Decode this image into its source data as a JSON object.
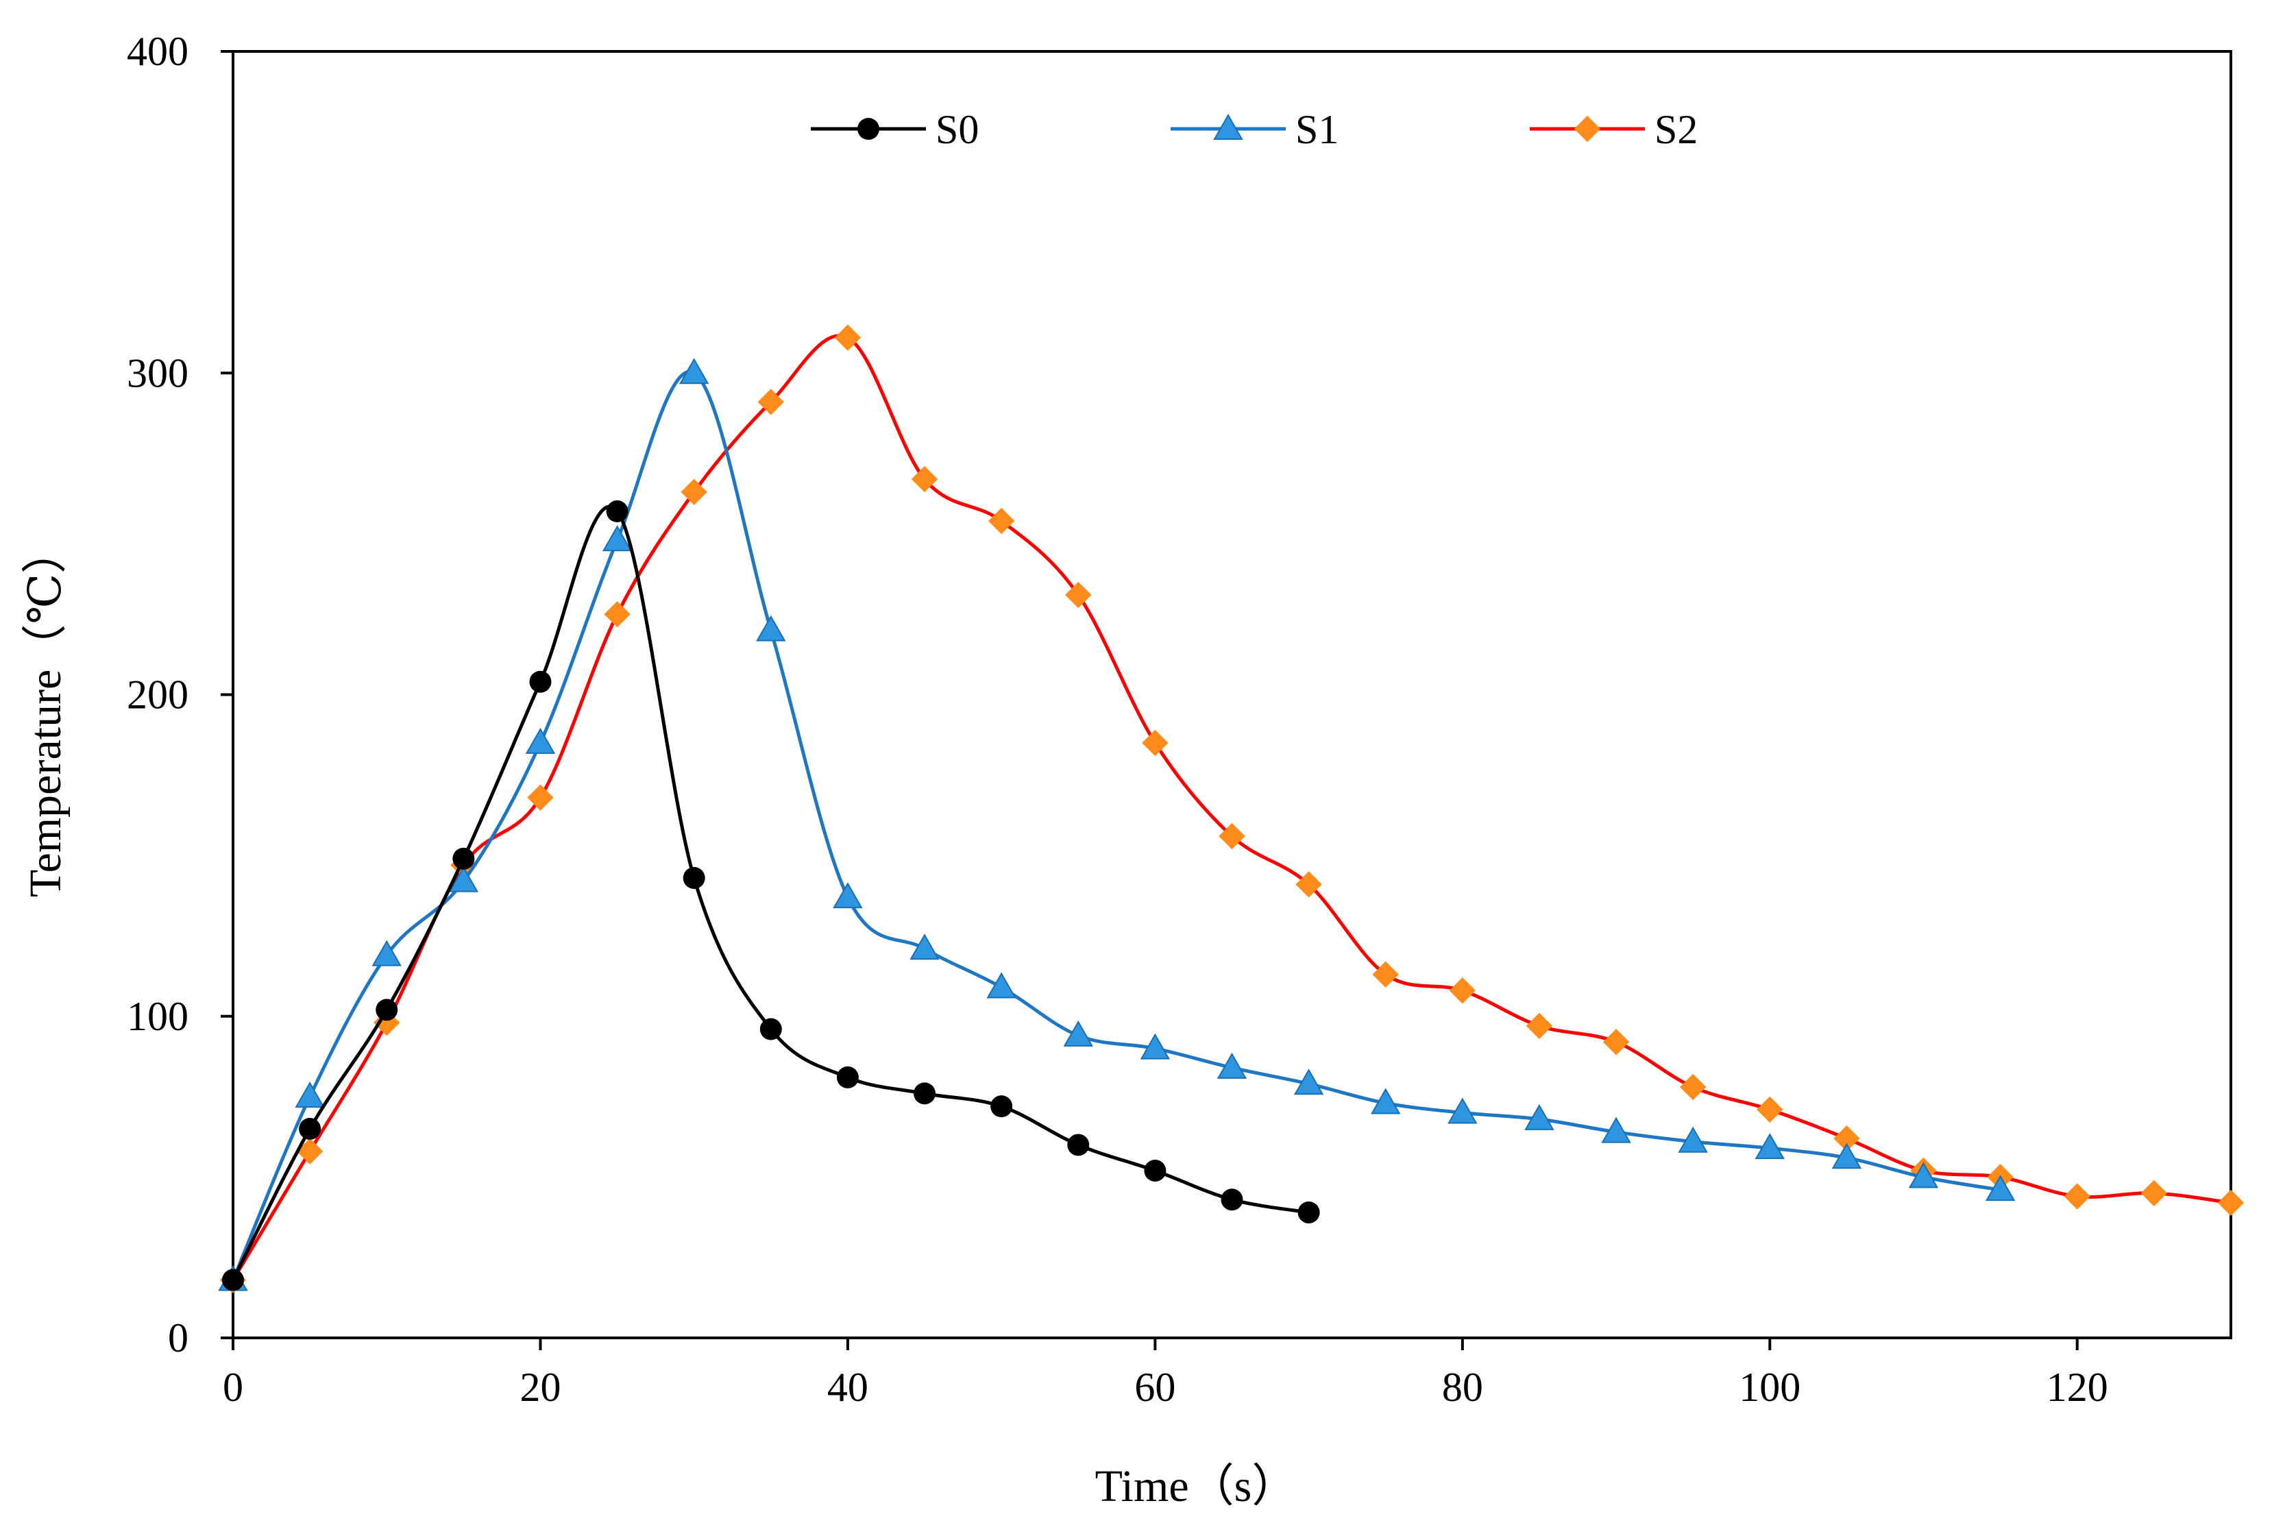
{
  "chart_data": {
    "type": "line",
    "title": "",
    "xlabel": "Time（s）",
    "ylabel": "Temperature（℃）",
    "xlim": [
      0,
      130
    ],
    "ylim": [
      0,
      400
    ],
    "xticks": [
      0,
      20,
      40,
      60,
      80,
      100,
      120
    ],
    "yticks": [
      0,
      100,
      200,
      300,
      400
    ],
    "grid": false,
    "legend_position": "top-center",
    "series": [
      {
        "name": "S0",
        "color": "#000000",
        "marker": "circle",
        "marker_color": "#000000",
        "x": [
          0,
          5,
          10,
          15,
          20,
          25,
          30,
          35,
          40,
          45,
          50,
          55,
          60,
          65,
          70
        ],
        "y": [
          18,
          65,
          102,
          149,
          204,
          257,
          143,
          96,
          81,
          76,
          72,
          60,
          52,
          43,
          39
        ]
      },
      {
        "name": "S1",
        "color": "#1f77c4",
        "marker": "triangle",
        "marker_color": "#2e96e0",
        "x": [
          0,
          5,
          10,
          15,
          20,
          25,
          30,
          35,
          40,
          45,
          50,
          55,
          60,
          65,
          70,
          75,
          80,
          85,
          90,
          95,
          100,
          105,
          110,
          115
        ],
        "y": [
          18,
          75,
          119,
          142,
          185,
          248,
          300,
          220,
          137,
          121,
          109,
          94,
          90,
          84,
          79,
          73,
          70,
          68,
          64,
          61,
          59,
          56,
          50,
          46
        ]
      },
      {
        "name": "S2",
        "color": "#ff0000",
        "marker": "diamond",
        "marker_color": "#ff8c1a",
        "x": [
          0,
          5,
          10,
          15,
          20,
          25,
          30,
          35,
          40,
          45,
          50,
          55,
          60,
          65,
          70,
          75,
          80,
          85,
          90,
          95,
          100,
          105,
          110,
          115,
          120,
          125,
          130
        ],
        "y": [
          18,
          58,
          98,
          147,
          168,
          225,
          263,
          291,
          311,
          267,
          254,
          231,
          185,
          156,
          141,
          113,
          108,
          97,
          92,
          78,
          71,
          62,
          52,
          50,
          44,
          45,
          42
        ]
      }
    ]
  }
}
